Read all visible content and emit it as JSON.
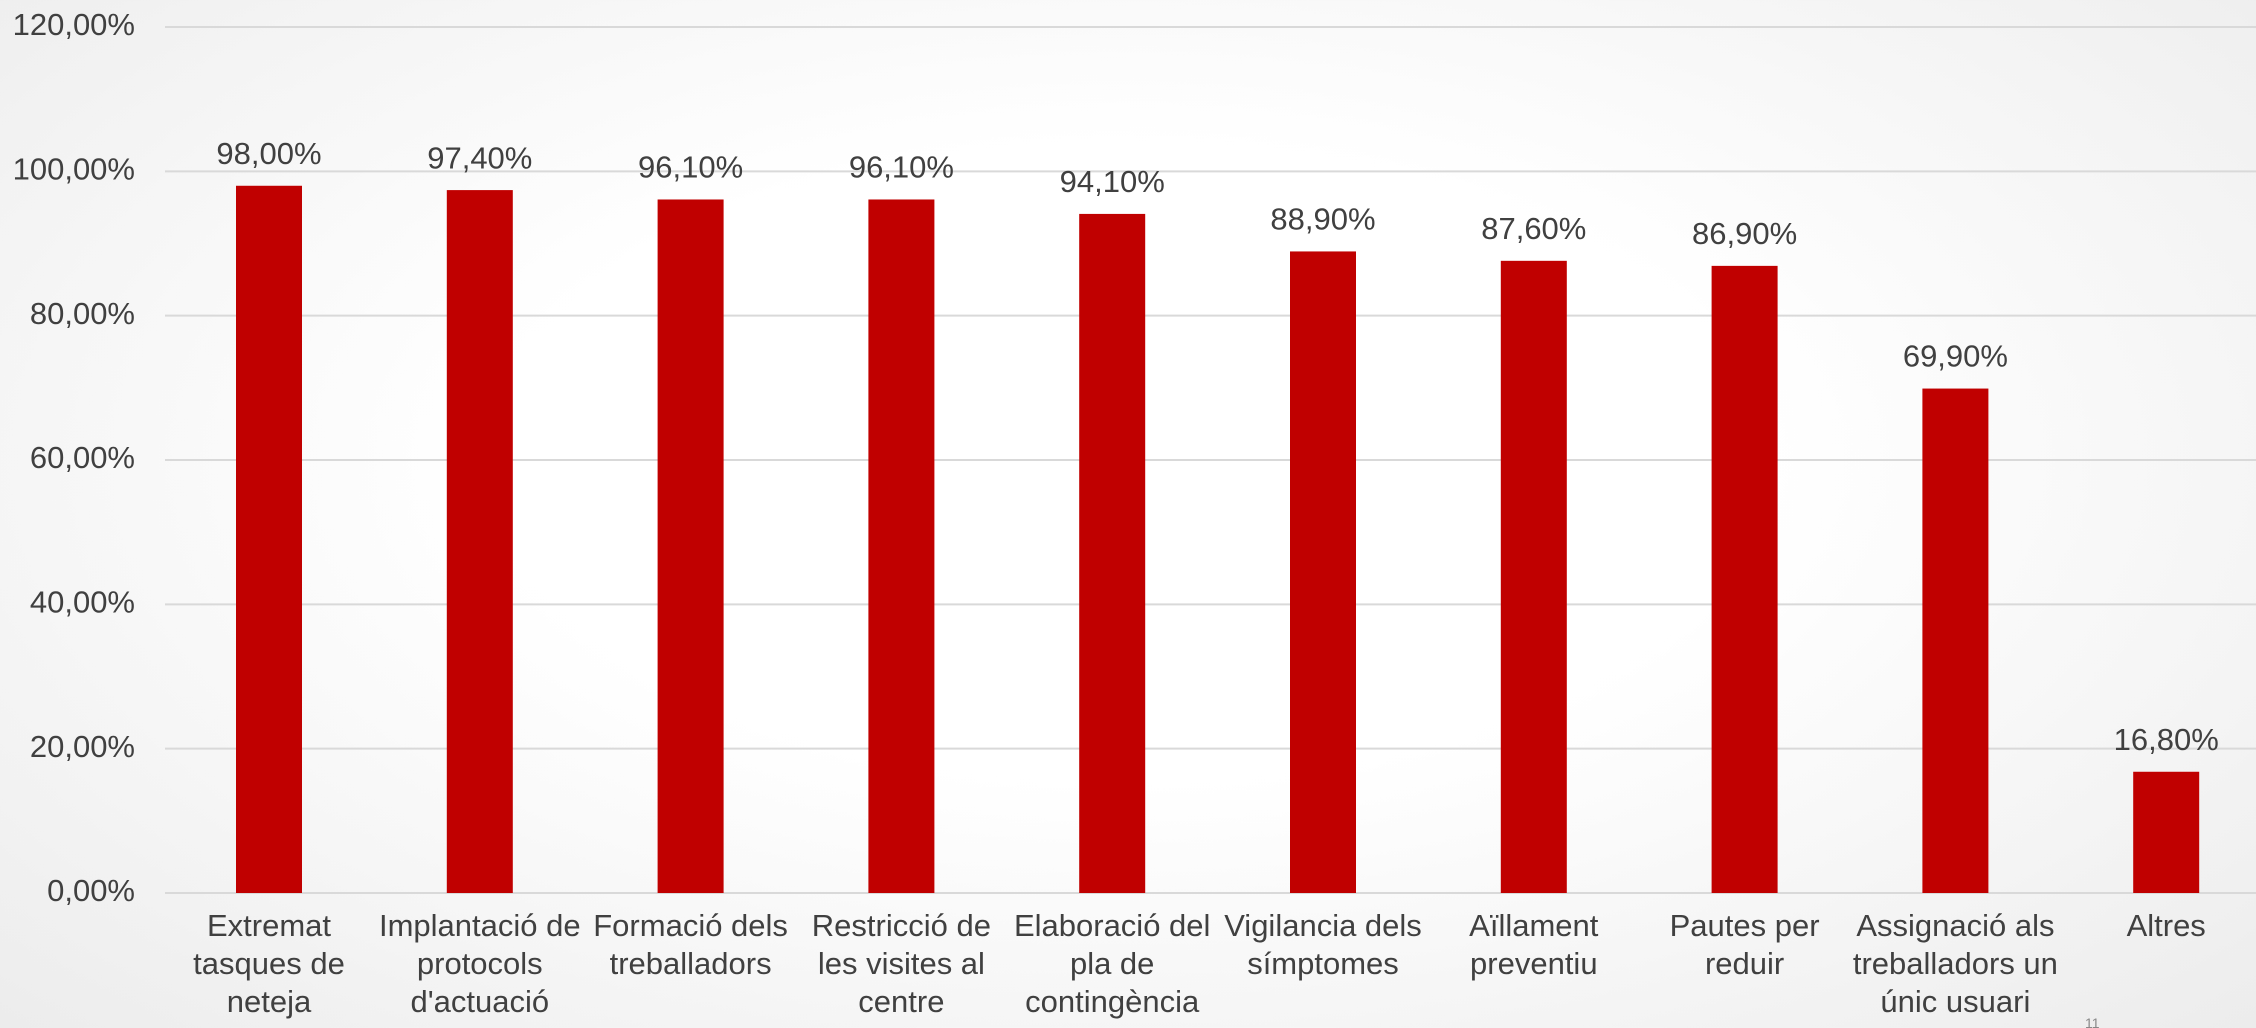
{
  "chart_data": {
    "type": "bar",
    "categories": [
      "Extremat tasques de neteja",
      "Implantació de protocols d'actuació",
      "Formació dels treballadors",
      "Restricció de les visites al centre",
      "Elaboració del pla de contingència",
      "Vigilancia dels símptomes",
      "Aïllament preventiu",
      "Pautes per reduir",
      "Assignació als treballadors un únic usuari",
      "Altres"
    ],
    "values": [
      98.0,
      97.4,
      96.1,
      96.1,
      94.1,
      88.9,
      87.6,
      86.9,
      69.9,
      16.8
    ],
    "value_labels": [
      "98,00%",
      "97,40%",
      "96,10%",
      "96,10%",
      "94,10%",
      "88,90%",
      "87,60%",
      "86,90%",
      "69,90%",
      "16,80%"
    ],
    "color": "#c00000",
    "ylim": [
      0,
      120
    ],
    "yticks": [
      {
        "value": 0,
        "label": "0,00%"
      },
      {
        "value": 20,
        "label": "20,00%"
      },
      {
        "value": 40,
        "label": "40,00%"
      },
      {
        "value": 60,
        "label": "60,00%"
      },
      {
        "value": 80,
        "label": "80,00%"
      },
      {
        "value": 100,
        "label": "100,00%"
      },
      {
        "value": 120,
        "label": "120,00%"
      }
    ],
    "grid": true
  },
  "page_number": "11"
}
